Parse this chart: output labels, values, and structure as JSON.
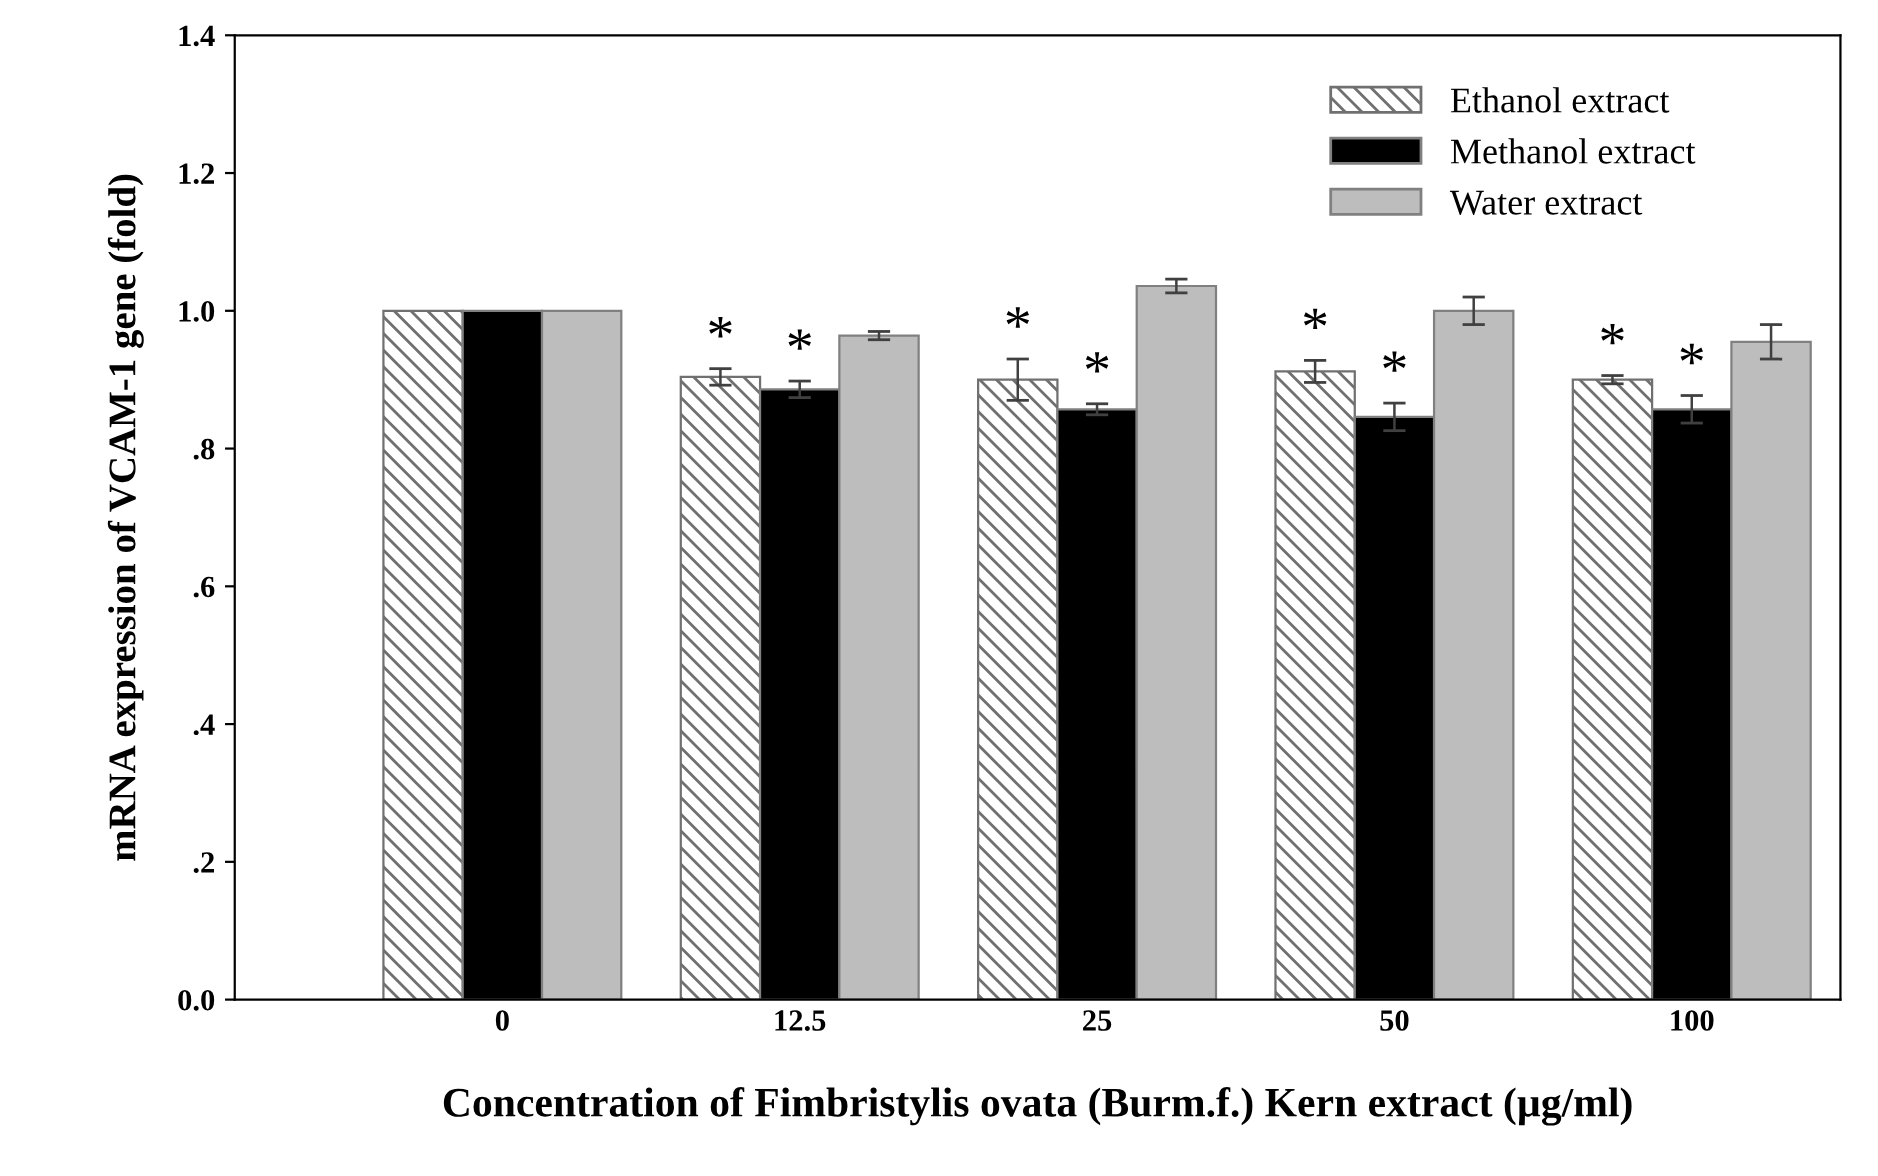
{
  "chart_data": {
    "type": "bar",
    "xlabel": "Concentration of Fimbristylis ovata (Burm.f.) Kern extract (µg/ml)",
    "ylabel": "mRNA expression of VCAM-1 gene (fold)",
    "categories": [
      "0",
      "12.5",
      "25",
      "50",
      "100"
    ],
    "series": [
      {
        "name": "Ethanol extract",
        "color": "#707070",
        "values": [
          1.0,
          0.904,
          0.9,
          0.912,
          0.9
        ],
        "errors": [
          null,
          0.012,
          0.03,
          0.016,
          0.006
        ],
        "value_labels": [
          null,
          "*",
          "*",
          "*",
          "*"
        ]
      },
      {
        "name": "Methanol extract",
        "color": "#000000",
        "values": [
          1.0,
          0.886,
          0.857,
          0.846,
          0.857
        ],
        "errors": [
          null,
          0.012,
          0.008,
          0.02,
          0.02
        ],
        "value_labels": [
          null,
          "*",
          "*",
          "*",
          "*"
        ]
      },
      {
        "name": "Water extract",
        "color": "#bdbdbd",
        "values": [
          1.0,
          0.964,
          1.036,
          1.0,
          0.955
        ],
        "errors": [
          null,
          0.006,
          0.01,
          0.02,
          0.025
        ]
      }
    ],
    "ylim": [
      0,
      1.4
    ],
    "yticks": [
      {
        "value": 0,
        "label": "0.0"
      },
      {
        "value": 0.2,
        "label": ".2"
      },
      {
        "value": 0.4,
        "label": ".4"
      },
      {
        "value": 0.6,
        "label": ".6"
      },
      {
        "value": 0.8,
        "label": ".8"
      },
      {
        "value": 1.0,
        "label": "1.0"
      },
      {
        "value": 1.2,
        "label": "1.2"
      },
      {
        "value": 1.4,
        "label": "1.4"
      }
    ],
    "legend": "top right",
    "grid": false
  }
}
